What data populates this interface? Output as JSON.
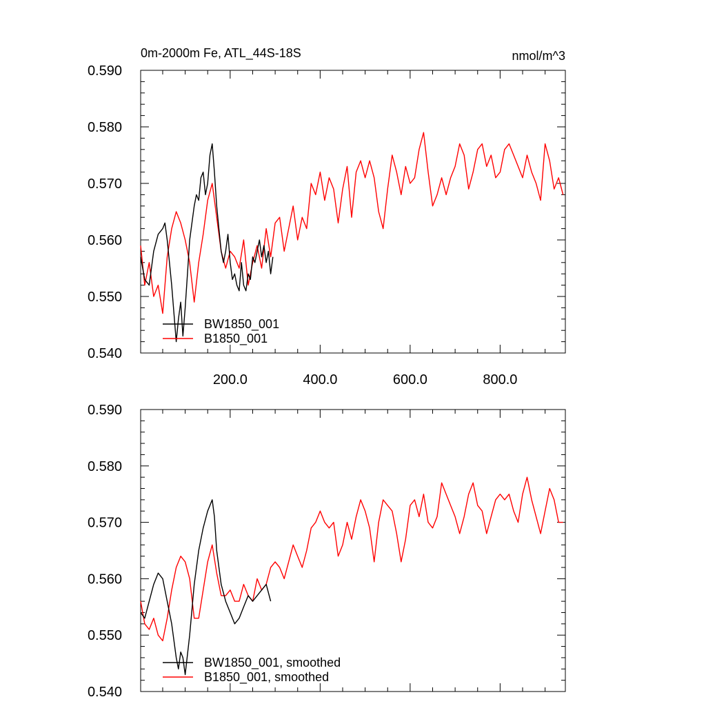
{
  "figure": {
    "title_left": "0m-2000m Fe, ATL_44S-18S",
    "title_right": "nmol/m^3"
  },
  "colors": {
    "BW1850_001": "#000000",
    "B1850_001": "#ff0000"
  },
  "chart_data": [
    {
      "type": "line",
      "title": "0m-2000m Fe, ATL_44S-18S",
      "units": "nmol/m^3",
      "xlim": [
        1,
        945
      ],
      "ylim": [
        0.54,
        0.59
      ],
      "x_ticks": [
        "200.0",
        "400.0",
        "600.0",
        "800.0"
      ],
      "y_ticks": [
        "0.540",
        "0.550",
        "0.560",
        "0.570",
        "0.580",
        "0.590"
      ],
      "legend": "bottom-left",
      "series": [
        {
          "name": "BW1850_001",
          "color": "#000000",
          "x": [
            1,
            10,
            20,
            30,
            40,
            50,
            55,
            60,
            65,
            70,
            75,
            80,
            85,
            90,
            95,
            100,
            105,
            110,
            115,
            120,
            125,
            130,
            135,
            140,
            145,
            150,
            155,
            160,
            165,
            170,
            175,
            180,
            185,
            190,
            195,
            200,
            205,
            210,
            215,
            220,
            225,
            230,
            235,
            240,
            245,
            250,
            255,
            260,
            265,
            270,
            275,
            280,
            285,
            290,
            295
          ],
          "y": [
            0.557,
            0.553,
            0.552,
            0.558,
            0.561,
            0.562,
            0.563,
            0.56,
            0.556,
            0.552,
            0.547,
            0.542,
            0.546,
            0.549,
            0.543,
            0.548,
            0.554,
            0.56,
            0.563,
            0.566,
            0.568,
            0.567,
            0.571,
            0.572,
            0.568,
            0.57,
            0.575,
            0.577,
            0.572,
            0.566,
            0.562,
            0.558,
            0.556,
            0.558,
            0.561,
            0.556,
            0.553,
            0.554,
            0.552,
            0.551,
            0.556,
            0.552,
            0.551,
            0.554,
            0.553,
            0.557,
            0.556,
            0.558,
            0.56,
            0.557,
            0.559,
            0.556,
            0.558,
            0.554,
            0.557
          ]
        },
        {
          "name": "B1850_001",
          "color": "#ff0000",
          "x": [
            1,
            10,
            20,
            30,
            40,
            50,
            60,
            70,
            80,
            90,
            100,
            110,
            120,
            130,
            140,
            150,
            160,
            170,
            180,
            190,
            200,
            210,
            220,
            230,
            240,
            250,
            260,
            270,
            280,
            290,
            300,
            310,
            320,
            330,
            340,
            350,
            360,
            370,
            380,
            390,
            400,
            410,
            420,
            430,
            440,
            450,
            460,
            470,
            480,
            490,
            500,
            510,
            520,
            530,
            540,
            550,
            560,
            570,
            580,
            590,
            600,
            610,
            620,
            630,
            640,
            650,
            660,
            670,
            680,
            690,
            700,
            710,
            720,
            730,
            740,
            750,
            760,
            770,
            780,
            790,
            800,
            810,
            820,
            830,
            840,
            850,
            860,
            870,
            880,
            890,
            900,
            910,
            920,
            930,
            940
          ],
          "y": [
            0.559,
            0.552,
            0.556,
            0.55,
            0.552,
            0.547,
            0.557,
            0.562,
            0.565,
            0.563,
            0.56,
            0.556,
            0.549,
            0.556,
            0.561,
            0.567,
            0.57,
            0.564,
            0.558,
            0.555,
            0.558,
            0.557,
            0.555,
            0.56,
            0.552,
            0.556,
            0.559,
            0.555,
            0.562,
            0.557,
            0.563,
            0.564,
            0.558,
            0.562,
            0.566,
            0.56,
            0.564,
            0.562,
            0.57,
            0.568,
            0.572,
            0.567,
            0.571,
            0.569,
            0.563,
            0.569,
            0.573,
            0.564,
            0.572,
            0.574,
            0.571,
            0.574,
            0.571,
            0.565,
            0.562,
            0.569,
            0.575,
            0.572,
            0.568,
            0.573,
            0.57,
            0.571,
            0.576,
            0.579,
            0.572,
            0.566,
            0.568,
            0.571,
            0.568,
            0.571,
            0.573,
            0.577,
            0.575,
            0.569,
            0.572,
            0.576,
            0.577,
            0.573,
            0.575,
            0.571,
            0.572,
            0.576,
            0.577,
            0.575,
            0.573,
            0.571,
            0.575,
            0.572,
            0.57,
            0.567,
            0.577,
            0.574,
            0.569,
            0.571,
            0.568
          ]
        }
      ]
    },
    {
      "type": "line",
      "xlim": [
        1,
        945
      ],
      "ylim": [
        0.54,
        0.59
      ],
      "y_ticks": [
        "0.540",
        "0.550",
        "0.560",
        "0.570",
        "0.580",
        "0.590"
      ],
      "legend": "bottom-left",
      "series": [
        {
          "name": "BW1850_001, smoothed",
          "color": "#000000",
          "x": [
            1,
            10,
            20,
            30,
            40,
            50,
            60,
            70,
            80,
            85,
            90,
            95,
            100,
            110,
            120,
            130,
            140,
            150,
            160,
            165,
            170,
            180,
            190,
            200,
            210,
            220,
            230,
            240,
            250,
            260,
            270,
            280,
            290
          ],
          "y": [
            0.554,
            0.553,
            0.556,
            0.559,
            0.561,
            0.56,
            0.556,
            0.552,
            0.546,
            0.544,
            0.547,
            0.546,
            0.543,
            0.55,
            0.559,
            0.565,
            0.569,
            0.572,
            0.574,
            0.571,
            0.565,
            0.559,
            0.556,
            0.554,
            0.552,
            0.553,
            0.555,
            0.557,
            0.556,
            0.557,
            0.558,
            0.559,
            0.556
          ]
        },
        {
          "name": "B1850_001, smoothed",
          "color": "#ff0000",
          "x": [
            1,
            10,
            20,
            30,
            40,
            50,
            60,
            70,
            80,
            90,
            100,
            110,
            120,
            130,
            140,
            150,
            160,
            170,
            180,
            190,
            200,
            210,
            220,
            230,
            240,
            250,
            260,
            270,
            280,
            290,
            300,
            310,
            320,
            330,
            340,
            350,
            360,
            370,
            380,
            390,
            400,
            410,
            420,
            430,
            440,
            450,
            460,
            470,
            480,
            490,
            500,
            510,
            520,
            530,
            540,
            550,
            560,
            570,
            580,
            590,
            600,
            610,
            620,
            630,
            640,
            650,
            660,
            670,
            680,
            690,
            700,
            710,
            720,
            730,
            740,
            750,
            760,
            770,
            780,
            790,
            800,
            810,
            820,
            830,
            840,
            850,
            860,
            870,
            880,
            890,
            900,
            910,
            920,
            930,
            940
          ],
          "y": [
            0.556,
            0.552,
            0.551,
            0.553,
            0.55,
            0.549,
            0.553,
            0.558,
            0.562,
            0.564,
            0.563,
            0.56,
            0.553,
            0.553,
            0.558,
            0.563,
            0.566,
            0.561,
            0.557,
            0.557,
            0.558,
            0.556,
            0.556,
            0.559,
            0.557,
            0.556,
            0.56,
            0.558,
            0.559,
            0.562,
            0.563,
            0.562,
            0.56,
            0.563,
            0.566,
            0.564,
            0.562,
            0.565,
            0.569,
            0.57,
            0.572,
            0.57,
            0.569,
            0.57,
            0.564,
            0.566,
            0.57,
            0.567,
            0.571,
            0.574,
            0.572,
            0.569,
            0.563,
            0.57,
            0.574,
            0.573,
            0.572,
            0.568,
            0.563,
            0.567,
            0.573,
            0.574,
            0.571,
            0.575,
            0.57,
            0.569,
            0.571,
            0.577,
            0.575,
            0.573,
            0.571,
            0.568,
            0.571,
            0.575,
            0.577,
            0.573,
            0.572,
            0.568,
            0.571,
            0.574,
            0.575,
            0.574,
            0.575,
            0.572,
            0.57,
            0.575,
            0.578,
            0.574,
            0.571,
            0.568,
            0.572,
            0.576,
            0.574,
            0.57,
            0.57
          ]
        }
      ]
    }
  ]
}
